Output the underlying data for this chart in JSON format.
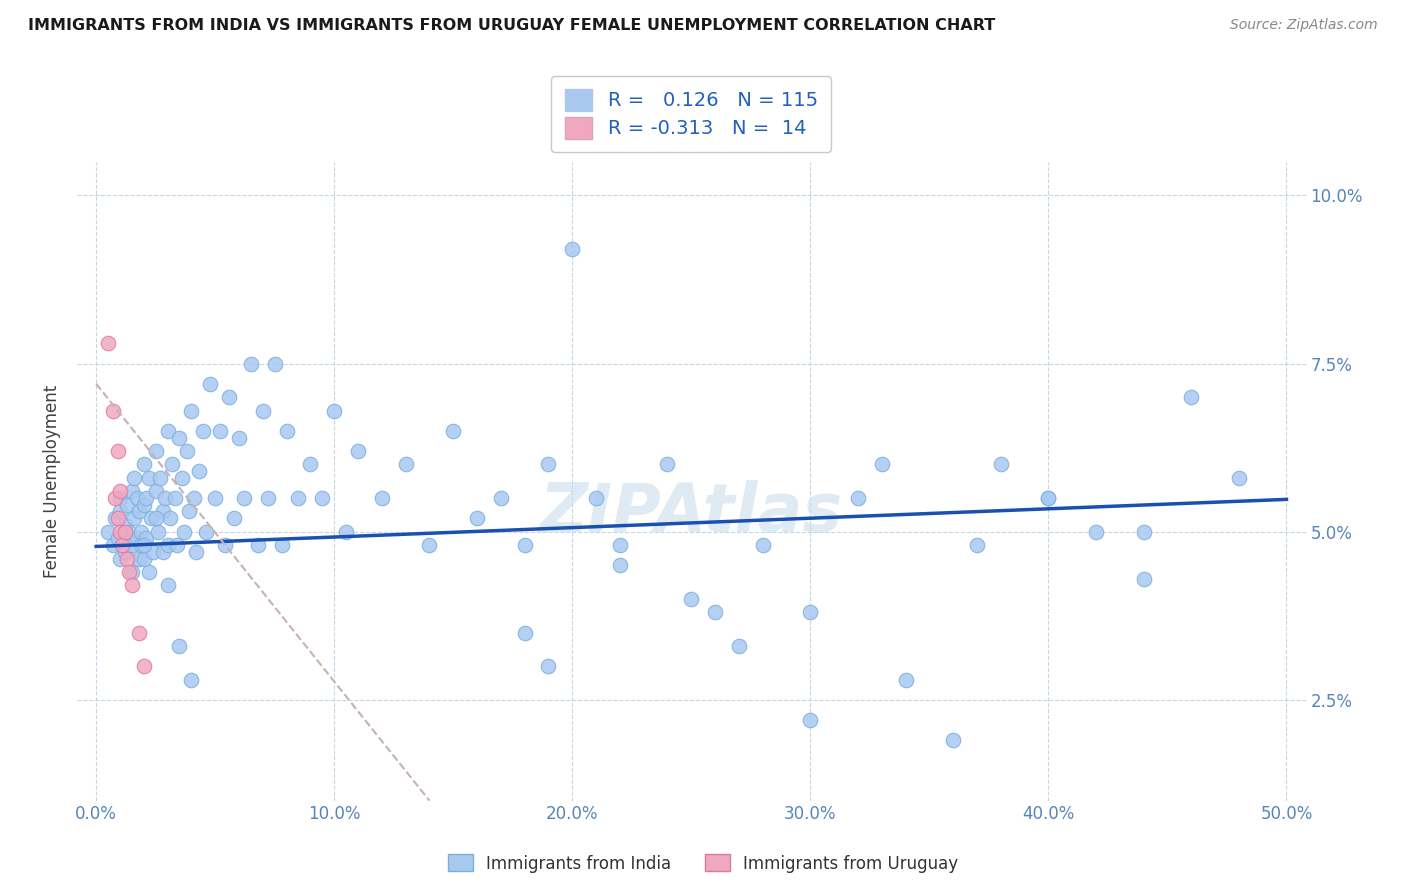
{
  "title": "IMMIGRANTS FROM INDIA VS IMMIGRANTS FROM URUGUAY FEMALE UNEMPLOYMENT CORRELATION CHART",
  "source": "Source: ZipAtlas.com",
  "ylabel": "Female Unemployment",
  "xlim": [
    0.0,
    0.5
  ],
  "ylim": [
    0.01,
    0.105
  ],
  "india_color": "#a8c8f0",
  "india_edge": "#7ab0e0",
  "uruguay_color": "#f0a8c0",
  "uruguay_edge": "#e078a0",
  "trendline_india_color": "#1a50b0",
  "trendline_uruguay_color": "#c8b0b8",
  "watermark": "ZIPAtlas",
  "legend_R_india": "0.126",
  "legend_N_india": "115",
  "legend_R_uruguay": "-0.313",
  "legend_N_uruguay": "14",
  "xticks": [
    0.0,
    0.1,
    0.2,
    0.3,
    0.4,
    0.5
  ],
  "xticklabels": [
    "0.0%",
    "10.0%",
    "20.0%",
    "30.0%",
    "40.0%",
    "50.0%"
  ],
  "yticks": [
    0.025,
    0.05,
    0.075,
    0.1
  ],
  "yticklabels": [
    "2.5%",
    "5.0%",
    "7.5%",
    "10.0%"
  ],
  "india_x": [
    0.005,
    0.007,
    0.008,
    0.009,
    0.01,
    0.01,
    0.01,
    0.012,
    0.012,
    0.013,
    0.014,
    0.015,
    0.015,
    0.015,
    0.016,
    0.016,
    0.017,
    0.017,
    0.018,
    0.018,
    0.019,
    0.019,
    0.02,
    0.02,
    0.02,
    0.021,
    0.021,
    0.022,
    0.022,
    0.023,
    0.024,
    0.025,
    0.025,
    0.026,
    0.027,
    0.028,
    0.028,
    0.029,
    0.03,
    0.03,
    0.031,
    0.032,
    0.033,
    0.034,
    0.035,
    0.036,
    0.037,
    0.038,
    0.039,
    0.04,
    0.041,
    0.042,
    0.043,
    0.045,
    0.046,
    0.048,
    0.05,
    0.052,
    0.054,
    0.056,
    0.058,
    0.06,
    0.062,
    0.065,
    0.068,
    0.07,
    0.072,
    0.075,
    0.078,
    0.08,
    0.085,
    0.09,
    0.095,
    0.1,
    0.105,
    0.11,
    0.12,
    0.13,
    0.14,
    0.15,
    0.16,
    0.17,
    0.18,
    0.19,
    0.2,
    0.21,
    0.22,
    0.24,
    0.26,
    0.28,
    0.3,
    0.32,
    0.34,
    0.36,
    0.38,
    0.4,
    0.42,
    0.44,
    0.46,
    0.48,
    0.18,
    0.19,
    0.22,
    0.25,
    0.27,
    0.3,
    0.33,
    0.37,
    0.4,
    0.44,
    0.02,
    0.025,
    0.03,
    0.035,
    0.04
  ],
  "india_y": [
    0.05,
    0.048,
    0.052,
    0.049,
    0.055,
    0.046,
    0.053,
    0.051,
    0.047,
    0.054,
    0.05,
    0.048,
    0.056,
    0.044,
    0.052,
    0.058,
    0.049,
    0.055,
    0.046,
    0.053,
    0.05,
    0.048,
    0.06,
    0.054,
    0.046,
    0.055,
    0.049,
    0.058,
    0.044,
    0.052,
    0.047,
    0.062,
    0.056,
    0.05,
    0.058,
    0.053,
    0.047,
    0.055,
    0.065,
    0.048,
    0.052,
    0.06,
    0.055,
    0.048,
    0.064,
    0.058,
    0.05,
    0.062,
    0.053,
    0.068,
    0.055,
    0.047,
    0.059,
    0.065,
    0.05,
    0.072,
    0.055,
    0.065,
    0.048,
    0.07,
    0.052,
    0.064,
    0.055,
    0.075,
    0.048,
    0.068,
    0.055,
    0.075,
    0.048,
    0.065,
    0.055,
    0.06,
    0.055,
    0.068,
    0.05,
    0.062,
    0.055,
    0.06,
    0.048,
    0.065,
    0.052,
    0.055,
    0.048,
    0.06,
    0.092,
    0.055,
    0.048,
    0.06,
    0.038,
    0.048,
    0.038,
    0.055,
    0.028,
    0.019,
    0.06,
    0.055,
    0.05,
    0.043,
    0.07,
    0.058,
    0.035,
    0.03,
    0.045,
    0.04,
    0.033,
    0.022,
    0.06,
    0.048,
    0.055,
    0.05,
    0.048,
    0.052,
    0.042,
    0.033,
    0.028
  ],
  "uruguay_x": [
    0.005,
    0.007,
    0.008,
    0.009,
    0.009,
    0.01,
    0.01,
    0.011,
    0.012,
    0.013,
    0.014,
    0.015,
    0.018,
    0.02
  ],
  "uruguay_y": [
    0.078,
    0.068,
    0.055,
    0.062,
    0.052,
    0.05,
    0.056,
    0.048,
    0.05,
    0.046,
    0.044,
    0.042,
    0.035,
    0.03
  ],
  "india_trend_x0": 0.0,
  "india_trend_y0": 0.0478,
  "india_trend_x1": 0.5,
  "india_trend_y1": 0.0548,
  "uruguay_trend_x0": 0.0,
  "uruguay_trend_y0": 0.072,
  "uruguay_trend_x1": 0.14,
  "uruguay_trend_y1": 0.01
}
